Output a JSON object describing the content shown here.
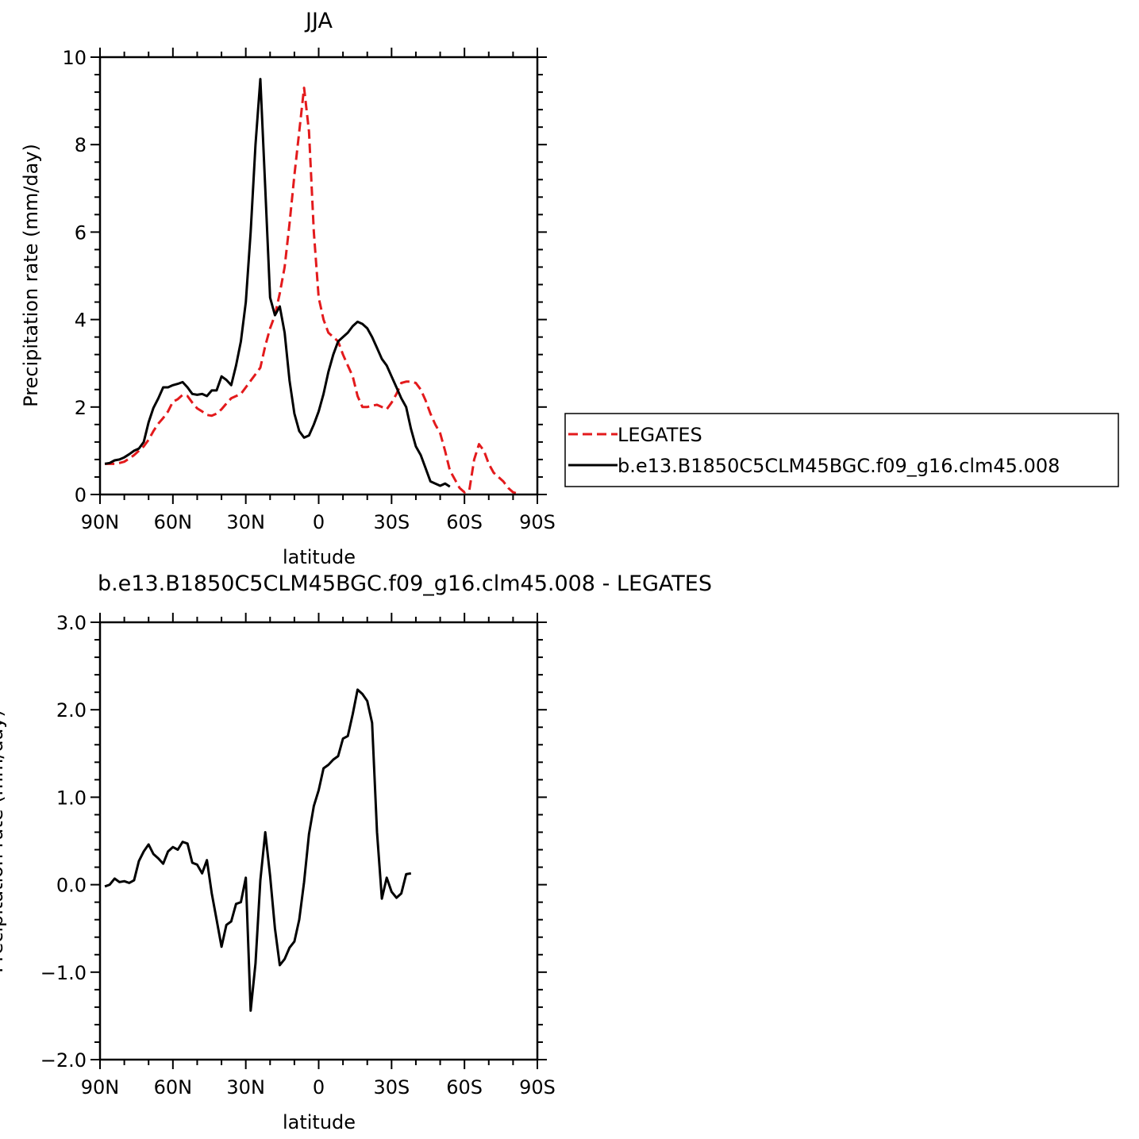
{
  "chart_data": [
    {
      "type": "line",
      "title": "JJA",
      "xlabel": "latitude",
      "ylabel": "Precipitation rate (mm/day)",
      "xlim": [
        90,
        -90
      ],
      "ylim": [
        0,
        10
      ],
      "xticks": [
        90,
        60,
        30,
        0,
        -30,
        -60,
        -90
      ],
      "xtick_labels": [
        "90N",
        "60N",
        "30N",
        "0",
        "30S",
        "60S",
        "90S"
      ],
      "yticks": [
        0,
        2,
        4,
        6,
        8,
        10
      ],
      "ytick_labels": [
        "0",
        "2",
        "4",
        "6",
        "8",
        "10"
      ],
      "grid": false,
      "legend_position": "right",
      "series": [
        {
          "name": "LEGATES",
          "color": "#e31a1c",
          "dash": "dashed",
          "points": [
            [
              88,
              0.7
            ],
            [
              86,
              0.7
            ],
            [
              84,
              0.7
            ],
            [
              82,
              0.72
            ],
            [
              80,
              0.75
            ],
            [
              78,
              0.82
            ],
            [
              76,
              0.9
            ],
            [
              74,
              1.0
            ],
            [
              72,
              1.1
            ],
            [
              70,
              1.25
            ],
            [
              68,
              1.45
            ],
            [
              66,
              1.62
            ],
            [
              64,
              1.75
            ],
            [
              62,
              1.9
            ],
            [
              60,
              2.12
            ],
            [
              58,
              2.18
            ],
            [
              56,
              2.28
            ],
            [
              54,
              2.25
            ],
            [
              52,
              2.1
            ],
            [
              50,
              1.97
            ],
            [
              48,
              1.9
            ],
            [
              46,
              1.82
            ],
            [
              44,
              1.8
            ],
            [
              42,
              1.85
            ],
            [
              40,
              1.95
            ],
            [
              38,
              2.08
            ],
            [
              36,
              2.2
            ],
            [
              34,
              2.25
            ],
            [
              32,
              2.3
            ],
            [
              30,
              2.45
            ],
            [
              28,
              2.6
            ],
            [
              26,
              2.75
            ],
            [
              24,
              2.9
            ],
            [
              22,
              3.4
            ],
            [
              20,
              3.8
            ],
            [
              18,
              4.1
            ],
            [
              16,
              4.6
            ],
            [
              14,
              5.2
            ],
            [
              12,
              6.2
            ],
            [
              10,
              7.3
            ],
            [
              8,
              8.3
            ],
            [
              6,
              9.3
            ],
            [
              4,
              8.3
            ],
            [
              2,
              6.0
            ],
            [
              0,
              4.5
            ],
            [
              -2,
              4.0
            ],
            [
              -4,
              3.7
            ],
            [
              -6,
              3.6
            ],
            [
              -8,
              3.5
            ],
            [
              -10,
              3.2
            ],
            [
              -12,
              2.95
            ],
            [
              -14,
              2.7
            ],
            [
              -16,
              2.25
            ],
            [
              -18,
              2.0
            ],
            [
              -20,
              2.0
            ],
            [
              -22,
              2.03
            ],
            [
              -24,
              2.05
            ],
            [
              -26,
              2.0
            ],
            [
              -28,
              1.95
            ],
            [
              -30,
              2.1
            ],
            [
              -32,
              2.3
            ],
            [
              -34,
              2.55
            ],
            [
              -36,
              2.58
            ],
            [
              -38,
              2.58
            ],
            [
              -40,
              2.55
            ],
            [
              -42,
              2.4
            ],
            [
              -44,
              2.15
            ],
            [
              -46,
              1.85
            ],
            [
              -48,
              1.6
            ],
            [
              -50,
              1.4
            ],
            [
              -52,
              1.0
            ],
            [
              -54,
              0.55
            ],
            [
              -56,
              0.35
            ],
            [
              -58,
              0.15
            ],
            [
              -60,
              0.05
            ],
            [
              -62,
              0.1
            ],
            [
              -64,
              0.8
            ],
            [
              -66,
              1.15
            ],
            [
              -68,
              1.0
            ],
            [
              -70,
              0.7
            ],
            [
              -72,
              0.5
            ],
            [
              -74,
              0.4
            ],
            [
              -76,
              0.3
            ],
            [
              -78,
              0.15
            ],
            [
              -80,
              0.05
            ],
            [
              -82,
              0.02
            ]
          ]
        },
        {
          "name": "b.e13.B1850C5CLM45BGC.f09_g16.clm45.008",
          "color": "#000000",
          "dash": "solid",
          "points": [
            [
              88,
              0.7
            ],
            [
              86,
              0.72
            ],
            [
              84,
              0.78
            ],
            [
              82,
              0.8
            ],
            [
              80,
              0.85
            ],
            [
              78,
              0.92
            ],
            [
              76,
              1.0
            ],
            [
              74,
              1.05
            ],
            [
              72,
              1.2
            ],
            [
              70,
              1.65
            ],
            [
              68,
              1.98
            ],
            [
              66,
              2.2
            ],
            [
              64,
              2.45
            ],
            [
              62,
              2.45
            ],
            [
              60,
              2.5
            ],
            [
              58,
              2.53
            ],
            [
              56,
              2.57
            ],
            [
              54,
              2.45
            ],
            [
              52,
              2.3
            ],
            [
              50,
              2.28
            ],
            [
              48,
              2.3
            ],
            [
              46,
              2.25
            ],
            [
              44,
              2.38
            ],
            [
              42,
              2.38
            ],
            [
              40,
              2.7
            ],
            [
              38,
              2.62
            ],
            [
              36,
              2.5
            ],
            [
              34,
              2.95
            ],
            [
              32,
              3.5
            ],
            [
              30,
              4.4
            ],
            [
              28,
              6.0
            ],
            [
              26,
              8.0
            ],
            [
              24,
              9.5
            ],
            [
              22,
              7.0
            ],
            [
              20,
              4.5
            ],
            [
              18,
              4.1
            ],
            [
              16,
              4.3
            ],
            [
              14,
              3.7
            ],
            [
              12,
              2.6
            ],
            [
              10,
              1.85
            ],
            [
              8,
              1.45
            ],
            [
              6,
              1.3
            ],
            [
              4,
              1.35
            ],
            [
              2,
              1.6
            ],
            [
              0,
              1.9
            ],
            [
              -2,
              2.3
            ],
            [
              -4,
              2.8
            ],
            [
              -6,
              3.2
            ],
            [
              -8,
              3.5
            ],
            [
              -10,
              3.6
            ],
            [
              -12,
              3.7
            ],
            [
              -14,
              3.85
            ],
            [
              -16,
              3.95
            ],
            [
              -18,
              3.9
            ],
            [
              -20,
              3.8
            ],
            [
              -22,
              3.6
            ],
            [
              -24,
              3.35
            ],
            [
              -26,
              3.1
            ],
            [
              -28,
              2.95
            ],
            [
              -30,
              2.7
            ],
            [
              -32,
              2.45
            ],
            [
              -34,
              2.2
            ],
            [
              -36,
              2.0
            ],
            [
              -38,
              1.5
            ],
            [
              -40,
              1.1
            ],
            [
              -42,
              0.9
            ],
            [
              -44,
              0.6
            ],
            [
              -46,
              0.3
            ],
            [
              -48,
              0.25
            ],
            [
              -50,
              0.2
            ],
            [
              -52,
              0.25
            ],
            [
              -54,
              0.18
            ]
          ]
        }
      ]
    },
    {
      "type": "line",
      "title": "b.e13.B1850C5CLM45BGC.f09_g16.clm45.008 - LEGATES",
      "xlabel": "latitude",
      "ylabel": "Precipitation rate (mm/day)",
      "xlim": [
        90,
        -90
      ],
      "ylim": [
        -2,
        3
      ],
      "xticks": [
        90,
        60,
        30,
        0,
        -30,
        -60,
        -90
      ],
      "xtick_labels": [
        "90N",
        "60N",
        "30N",
        "0",
        "30S",
        "60S",
        "90S"
      ],
      "yticks": [
        -2,
        -1,
        0,
        1,
        2,
        3
      ],
      "ytick_labels": [
        "-2.0",
        "-1.0",
        "0.0",
        "1.0",
        "2.0",
        "3.0"
      ],
      "grid": false,
      "series": [
        {
          "color": "#000000",
          "dash": "solid",
          "points": [
            [
              88,
              -0.02
            ],
            [
              86,
              0.0
            ],
            [
              84,
              0.07
            ],
            [
              82,
              0.03
            ],
            [
              80,
              0.04
            ],
            [
              78,
              0.02
            ],
            [
              76,
              0.05
            ],
            [
              74,
              0.27
            ],
            [
              72,
              0.38
            ],
            [
              70,
              0.46
            ],
            [
              68,
              0.35
            ],
            [
              66,
              0.3
            ],
            [
              64,
              0.24
            ],
            [
              62,
              0.38
            ],
            [
              60,
              0.43
            ],
            [
              58,
              0.4
            ],
            [
              56,
              0.49
            ],
            [
              54,
              0.47
            ],
            [
              52,
              0.25
            ],
            [
              50,
              0.23
            ],
            [
              48,
              0.13
            ],
            [
              46,
              0.28
            ],
            [
              44,
              -0.1
            ],
            [
              42,
              -0.4
            ],
            [
              40,
              -0.71
            ],
            [
              38,
              -0.46
            ],
            [
              36,
              -0.42
            ],
            [
              34,
              -0.22
            ],
            [
              32,
              -0.2
            ],
            [
              30,
              0.08
            ],
            [
              28,
              -1.44
            ],
            [
              26,
              -0.9
            ],
            [
              24,
              0.05
            ],
            [
              22,
              0.6
            ],
            [
              20,
              0.1
            ],
            [
              18,
              -0.5
            ],
            [
              16,
              -0.92
            ],
            [
              14,
              -0.85
            ],
            [
              12,
              -0.72
            ],
            [
              10,
              -0.65
            ],
            [
              8,
              -0.4
            ],
            [
              6,
              0.03
            ],
            [
              4,
              0.58
            ],
            [
              2,
              0.9
            ],
            [
              0,
              1.08
            ],
            [
              -2,
              1.33
            ],
            [
              -4,
              1.37
            ],
            [
              -6,
              1.43
            ],
            [
              -8,
              1.47
            ],
            [
              -10,
              1.67
            ],
            [
              -12,
              1.7
            ],
            [
              -14,
              1.95
            ],
            [
              -16,
              2.23
            ],
            [
              -18,
              2.18
            ],
            [
              -20,
              2.1
            ],
            [
              -22,
              1.85
            ],
            [
              -24,
              0.6
            ],
            [
              -26,
              -0.16
            ],
            [
              -28,
              0.08
            ],
            [
              -30,
              -0.08
            ],
            [
              -32,
              -0.15
            ],
            [
              -34,
              -0.1
            ],
            [
              -36,
              0.12
            ],
            [
              -38,
              0.13
            ]
          ]
        }
      ]
    }
  ]
}
